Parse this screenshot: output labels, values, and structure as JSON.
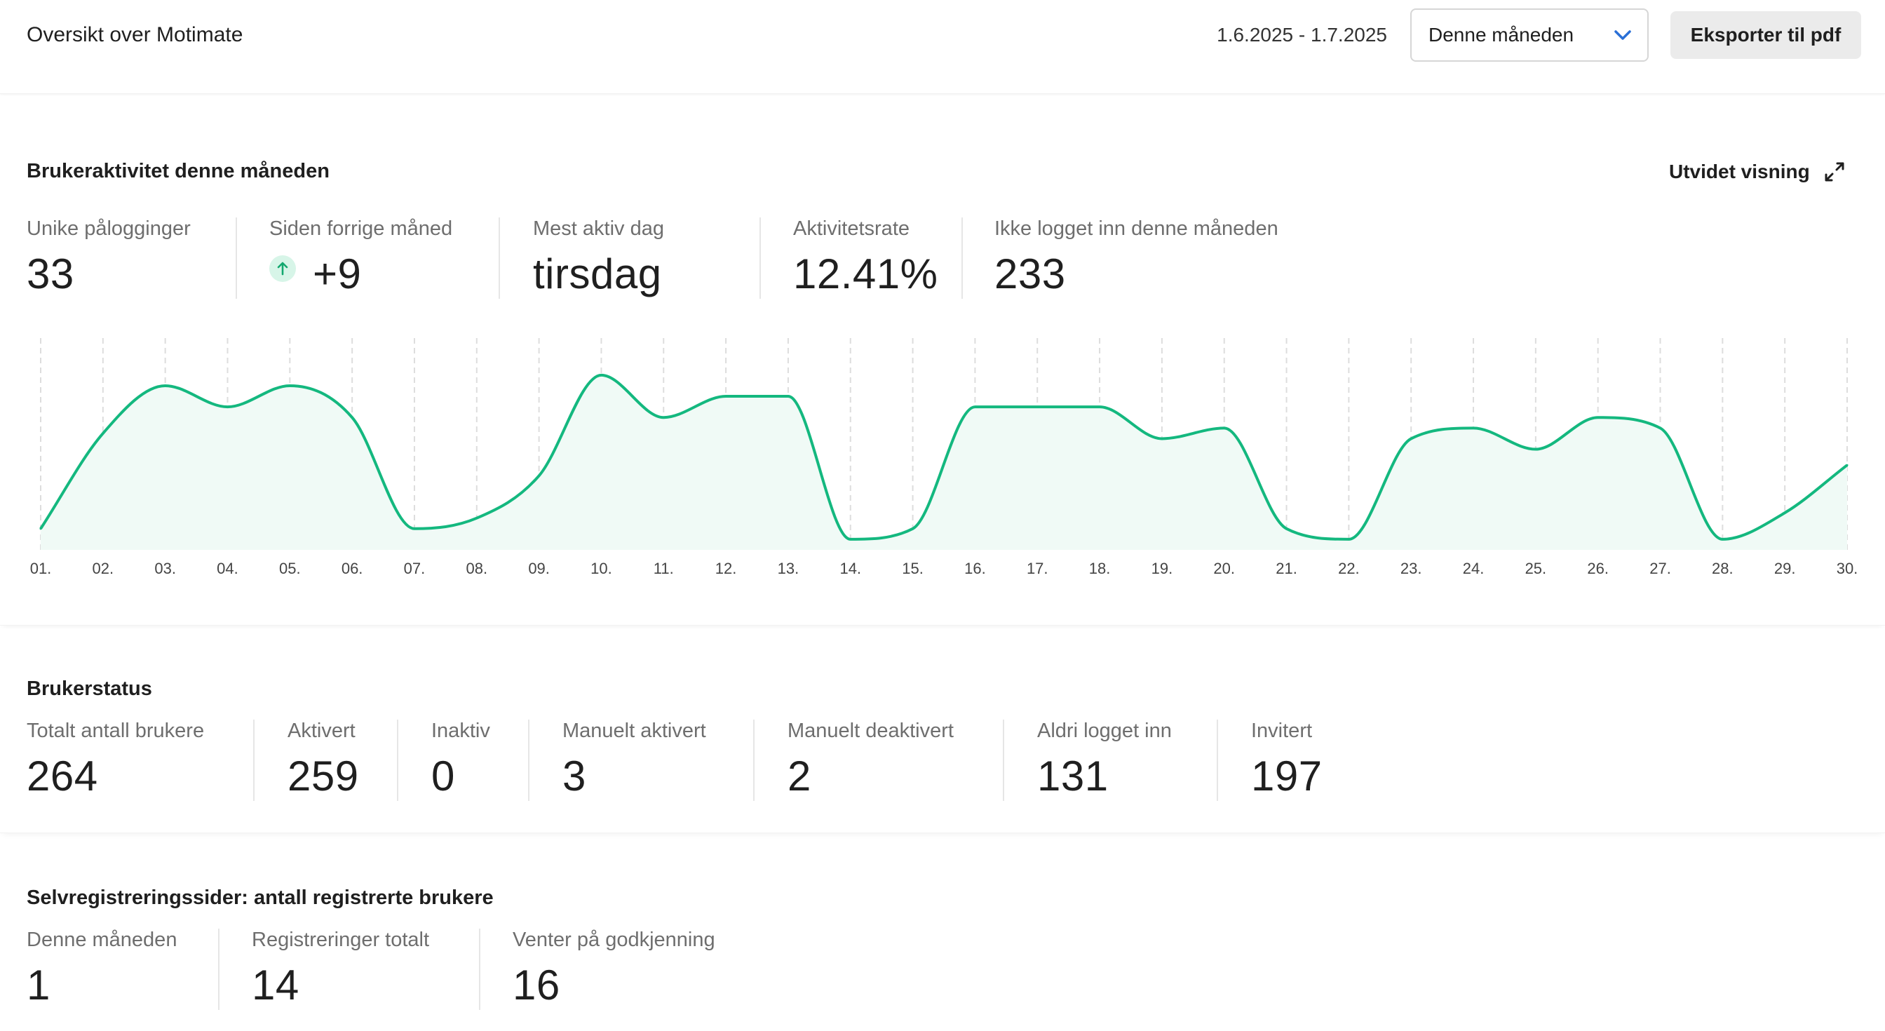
{
  "header": {
    "title": "Oversikt over Motimate",
    "date_range": "1.6.2025 - 1.7.2025",
    "period_select": {
      "value": "Denne måneden",
      "icon": "chevron-down-icon"
    },
    "export_label": "Eksporter til pdf"
  },
  "activity": {
    "title": "Brukeraktivitet denne måneden",
    "expand_label": "Utvidet visning",
    "expand_icon": "expand-arrows-icon",
    "stats": [
      {
        "label": "Unike pålogginger",
        "value": "33"
      },
      {
        "label": "Siden forrige måned",
        "value": "+9",
        "trend": "up"
      },
      {
        "label": "Mest aktiv dag",
        "value": "tirsdag"
      },
      {
        "label": "Aktivitetsrate",
        "value": "12.41%"
      },
      {
        "label": "Ikke logget inn denne måneden",
        "value": "233"
      }
    ]
  },
  "chart_data": {
    "type": "area",
    "x": [
      "01.",
      "02.",
      "03.",
      "04.",
      "05.",
      "06.",
      "07.",
      "08.",
      "09.",
      "10.",
      "11.",
      "12.",
      "13.",
      "14.",
      "15.",
      "16.",
      "17.",
      "18.",
      "19.",
      "20.",
      "21.",
      "22.",
      "23.",
      "24.",
      "25.",
      "26.",
      "27.",
      "28.",
      "29.",
      "30."
    ],
    "series": [
      {
        "values": [
          2,
          11,
          15.5,
          13.5,
          15.5,
          12.5,
          2,
          3,
          7,
          16.5,
          12.5,
          14.5,
          14.5,
          1,
          2,
          13.5,
          13.5,
          13.5,
          10.5,
          11.5,
          2,
          1,
          10.5,
          11.5,
          9.5,
          12.5,
          11.5,
          1,
          3.5,
          8
        ]
      }
    ],
    "ylim": [
      0,
      20
    ],
    "grid": "vertical-dashed",
    "colors": {
      "line": "#14b87f",
      "fill": "#f0faf6",
      "grid": "#dddddd"
    }
  },
  "status": {
    "title": "Brukerstatus",
    "stats": [
      {
        "label": "Totalt antall brukere",
        "value": "264"
      },
      {
        "label": "Aktivert",
        "value": "259"
      },
      {
        "label": "Inaktiv",
        "value": "0"
      },
      {
        "label": "Manuelt aktivert",
        "value": "3"
      },
      {
        "label": "Manuelt deaktivert",
        "value": "2"
      },
      {
        "label": "Aldri logget inn",
        "value": "131"
      },
      {
        "label": "Invitert",
        "value": "197"
      }
    ]
  },
  "selfreg": {
    "title": "Selvregistreringssider: antall registrerte brukere",
    "stats": [
      {
        "label": "Denne måneden",
        "value": "1"
      },
      {
        "label": "Registreringer totalt",
        "value": "14"
      },
      {
        "label": "Venter på godkjenning",
        "value": "16"
      }
    ]
  }
}
